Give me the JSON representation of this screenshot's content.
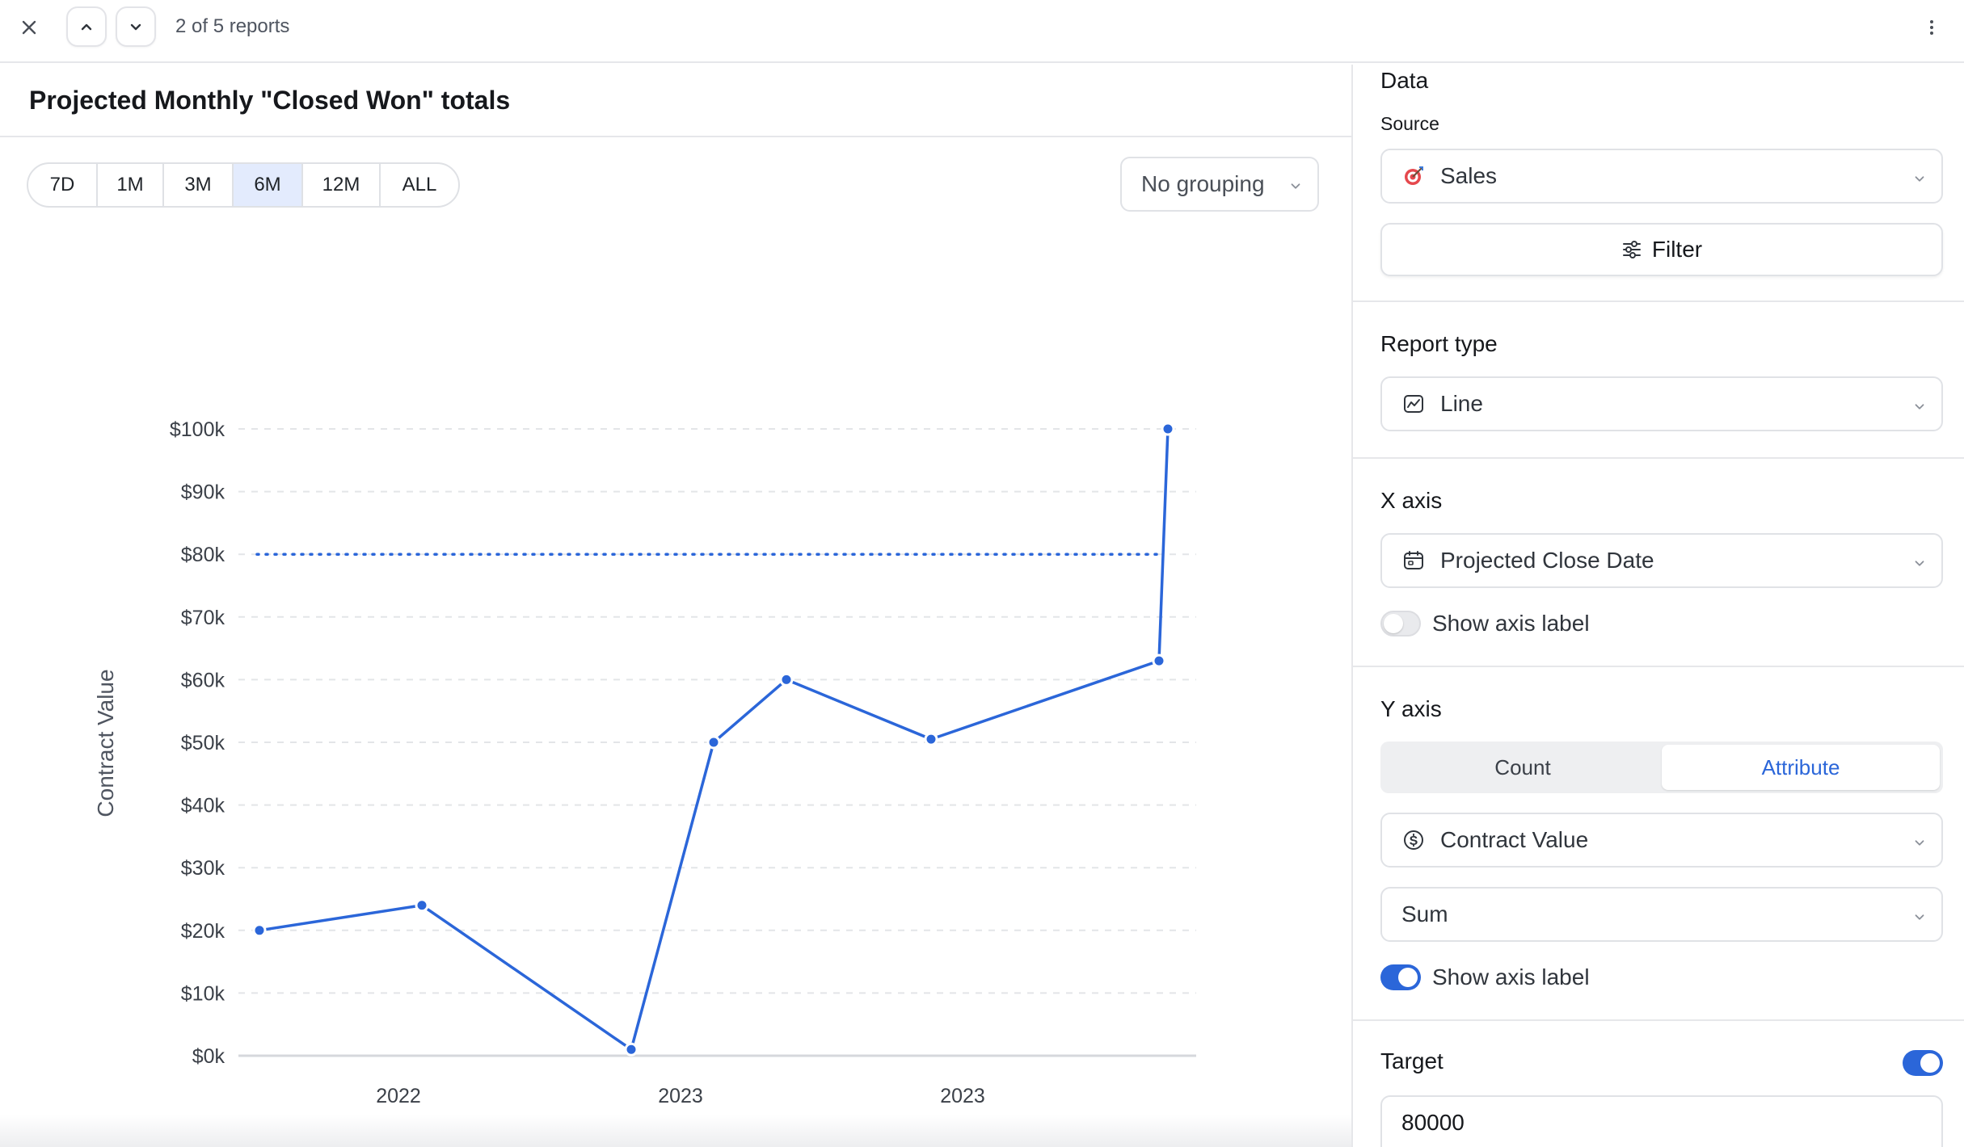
{
  "topbar": {
    "report_position": "2 of 5 reports"
  },
  "main": {
    "title": "Projected Monthly \"Closed Won\" totals",
    "ranges": [
      "7D",
      "1M",
      "3M",
      "6M",
      "12M",
      "ALL"
    ],
    "active_range": "6M",
    "grouping": "No grouping"
  },
  "chart_data": {
    "type": "line",
    "title": "",
    "xlabel": "",
    "ylabel": "Contract Value",
    "ylim": [
      0,
      100000
    ],
    "y_ticks": [
      "$0k",
      "$10k",
      "$20k",
      "$30k",
      "$40k",
      "$50k",
      "$60k",
      "$70k",
      "$80k",
      "$90k",
      "$100k"
    ],
    "x_tick_labels": [
      "2022",
      "2023",
      "2023"
    ],
    "series": [
      {
        "values": [
          20000,
          24000,
          1000,
          50000,
          60000,
          50500,
          63000,
          100000
        ]
      }
    ],
    "target_line": 80000,
    "grid": true,
    "line_color": "#2b66d9"
  },
  "panel": {
    "data_title": "Data",
    "source_label": "Source",
    "source_value": "Sales",
    "filter_label": "Filter",
    "report_type_title": "Report type",
    "report_type_value": "Line",
    "x_axis_title": "X axis",
    "x_axis_value": "Projected Close Date",
    "x_show_axis_label": "Show axis label",
    "x_show_axis_label_on": false,
    "y_axis_title": "Y axis",
    "y_mode_count": "Count",
    "y_mode_attribute": "Attribute",
    "y_mode_selected": "Attribute",
    "y_attribute_value": "Contract Value",
    "y_aggregation": "Sum",
    "y_show_axis_label": "Show axis label",
    "y_show_axis_label_on": true,
    "target_title": "Target",
    "target_on": true,
    "target_value": "80000"
  },
  "colors": {
    "accent": "#2b66d9",
    "active_range_bg": "#e3ebfd"
  },
  "icons": {
    "close": "close-icon",
    "up": "chevron-up-icon",
    "down": "chevron-down-icon",
    "more": "more-vertical-icon",
    "source": "target-dart-icon",
    "filter": "sliders-icon",
    "line": "line-chart-icon",
    "date": "calendar-icon",
    "currency": "dollar-circle-icon"
  }
}
